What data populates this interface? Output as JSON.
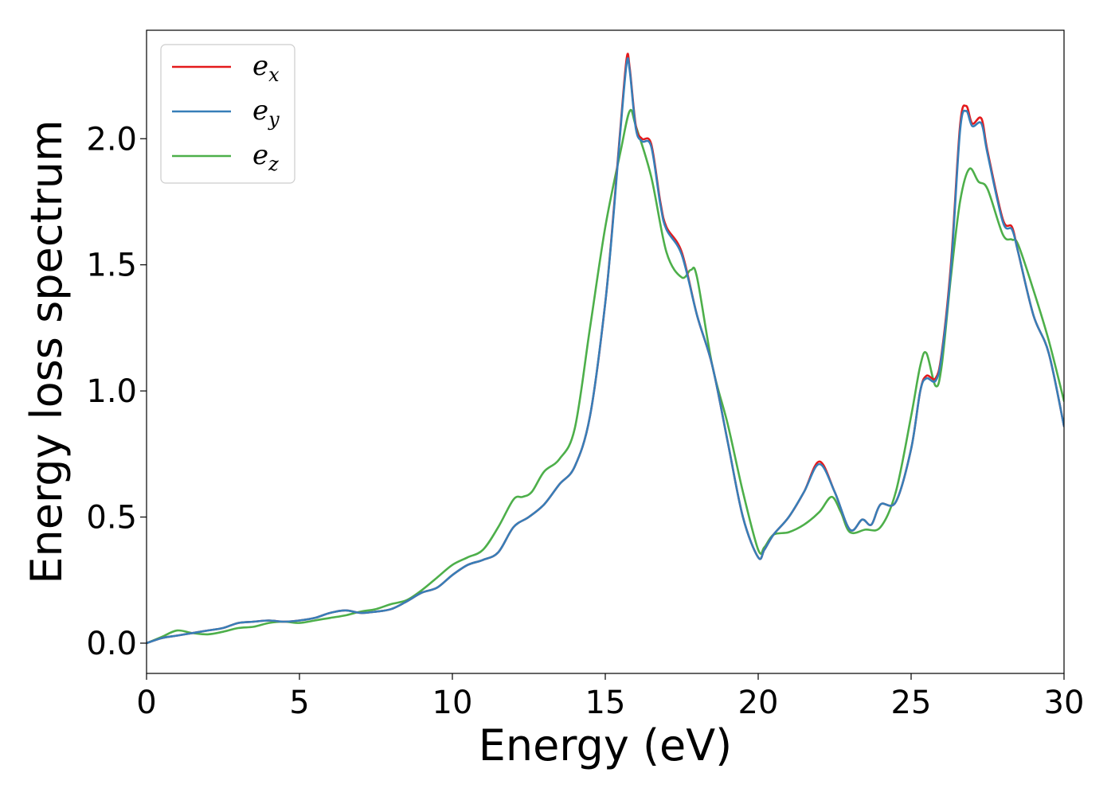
{
  "chart_data": {
    "type": "line",
    "title": "",
    "xlabel": "Energy (eV)",
    "ylabel": "Energy loss spectrum",
    "xlim": [
      0,
      30
    ],
    "ylim": [
      -0.12,
      2.43
    ],
    "xticks": [
      0,
      5,
      10,
      15,
      20,
      25,
      30
    ],
    "xtick_labels": [
      "0",
      "5",
      "10",
      "15",
      "20",
      "25",
      "30"
    ],
    "yticks": [
      0.0,
      0.5,
      1.0,
      1.5,
      2.0
    ],
    "ytick_labels": [
      "0.0",
      "0.5",
      "1.0",
      "1.5",
      "2.0"
    ],
    "grid": false,
    "legend_position": "top-left",
    "series": [
      {
        "name": "e_x",
        "legend_base": "e",
        "legend_sub": "x",
        "color": "#e41a1c",
        "x": [
          0,
          0.5,
          1,
          1.5,
          2,
          2.5,
          3,
          3.5,
          4,
          4.5,
          5,
          5.5,
          6,
          6.5,
          7,
          7.5,
          8,
          8.5,
          9,
          9.5,
          10,
          10.5,
          11,
          11.5,
          12,
          12.5,
          13,
          13.5,
          14,
          14.5,
          15,
          15.3,
          15.5,
          15.7,
          15.8,
          16,
          16.2,
          16.5,
          16.8,
          17,
          17.5,
          18,
          18.5,
          19,
          19.5,
          20,
          20.2,
          20.5,
          21,
          21.5,
          22,
          22.5,
          23,
          23.4,
          23.7,
          24,
          24.5,
          25,
          25.3,
          25.5,
          25.8,
          26,
          26.3,
          26.6,
          26.8,
          27,
          27.3,
          27.5,
          28,
          28.3,
          28.5,
          29,
          29.5,
          30
        ],
        "y": [
          0.0,
          0.02,
          0.03,
          0.04,
          0.05,
          0.06,
          0.08,
          0.085,
          0.09,
          0.085,
          0.09,
          0.1,
          0.12,
          0.13,
          0.12,
          0.125,
          0.135,
          0.165,
          0.2,
          0.22,
          0.27,
          0.31,
          0.33,
          0.36,
          0.46,
          0.5,
          0.55,
          0.63,
          0.7,
          0.9,
          1.35,
          1.75,
          2.05,
          2.32,
          2.28,
          2.05,
          2.0,
          1.98,
          1.75,
          1.65,
          1.55,
          1.3,
          1.1,
          0.8,
          0.5,
          0.34,
          0.37,
          0.43,
          0.5,
          0.6,
          0.72,
          0.6,
          0.45,
          0.49,
          0.47,
          0.55,
          0.56,
          0.77,
          1.0,
          1.06,
          1.05,
          1.15,
          1.5,
          2.05,
          2.13,
          2.06,
          2.08,
          1.95,
          1.68,
          1.65,
          1.55,
          1.3,
          1.15,
          0.86
        ]
      },
      {
        "name": "e_y",
        "legend_base": "e",
        "legend_sub": "y",
        "color": "#377eb8",
        "x": [
          0,
          0.5,
          1,
          1.5,
          2,
          2.5,
          3,
          3.5,
          4,
          4.5,
          5,
          5.5,
          6,
          6.5,
          7,
          7.5,
          8,
          8.5,
          9,
          9.5,
          10,
          10.5,
          11,
          11.5,
          12,
          12.5,
          13,
          13.5,
          14,
          14.5,
          15,
          15.3,
          15.5,
          15.7,
          15.8,
          16,
          16.2,
          16.5,
          16.8,
          17,
          17.5,
          18,
          18.5,
          19,
          19.5,
          20,
          20.2,
          20.5,
          21,
          21.5,
          22,
          22.5,
          23,
          23.4,
          23.7,
          24,
          24.5,
          25,
          25.3,
          25.5,
          25.8,
          26,
          26.3,
          26.6,
          26.8,
          27,
          27.3,
          27.5,
          28,
          28.3,
          28.5,
          29,
          29.5,
          30
        ],
        "y": [
          0.0,
          0.02,
          0.03,
          0.04,
          0.05,
          0.06,
          0.08,
          0.085,
          0.09,
          0.085,
          0.09,
          0.1,
          0.12,
          0.13,
          0.12,
          0.125,
          0.135,
          0.165,
          0.2,
          0.22,
          0.27,
          0.31,
          0.33,
          0.36,
          0.46,
          0.5,
          0.55,
          0.63,
          0.7,
          0.9,
          1.35,
          1.74,
          2.04,
          2.3,
          2.27,
          2.04,
          1.99,
          1.97,
          1.74,
          1.64,
          1.54,
          1.3,
          1.1,
          0.8,
          0.5,
          0.34,
          0.37,
          0.43,
          0.5,
          0.6,
          0.71,
          0.6,
          0.45,
          0.49,
          0.47,
          0.55,
          0.56,
          0.77,
          1.0,
          1.05,
          1.04,
          1.14,
          1.48,
          2.03,
          2.11,
          2.05,
          2.06,
          1.94,
          1.67,
          1.64,
          1.55,
          1.3,
          1.15,
          0.86
        ]
      },
      {
        "name": "e_z",
        "legend_base": "e",
        "legend_sub": "z",
        "color": "#4daf4a",
        "x": [
          0,
          0.5,
          1,
          1.5,
          2,
          2.5,
          3,
          3.5,
          4,
          4.5,
          5,
          5.5,
          6,
          6.5,
          7,
          7.5,
          8,
          8.5,
          9,
          9.5,
          10,
          10.5,
          11,
          11.5,
          12,
          12.3,
          12.6,
          13,
          13.5,
          14,
          14.5,
          15,
          15.5,
          15.8,
          16,
          16.5,
          17,
          17.5,
          17.8,
          18,
          18.5,
          19,
          19.5,
          20,
          20.2,
          20.5,
          21,
          21.5,
          22,
          22.4,
          22.7,
          23,
          23.5,
          24,
          24.5,
          25,
          25.3,
          25.5,
          25.8,
          26,
          26.3,
          26.6,
          26.9,
          27.2,
          27.5,
          28,
          28.3,
          28.5,
          29,
          29.5,
          30
        ],
        "y": [
          0.0,
          0.025,
          0.05,
          0.04,
          0.035,
          0.045,
          0.06,
          0.065,
          0.08,
          0.085,
          0.08,
          0.09,
          0.1,
          0.11,
          0.125,
          0.135,
          0.155,
          0.17,
          0.21,
          0.26,
          0.31,
          0.34,
          0.37,
          0.46,
          0.57,
          0.58,
          0.6,
          0.68,
          0.73,
          0.85,
          1.25,
          1.65,
          1.95,
          2.11,
          2.05,
          1.85,
          1.55,
          1.45,
          1.48,
          1.45,
          1.1,
          0.87,
          0.6,
          0.37,
          0.38,
          0.43,
          0.44,
          0.47,
          0.52,
          0.58,
          0.52,
          0.44,
          0.45,
          0.46,
          0.6,
          0.9,
          1.1,
          1.15,
          1.02,
          1.1,
          1.45,
          1.75,
          1.88,
          1.83,
          1.8,
          1.62,
          1.6,
          1.58,
          1.4,
          1.2,
          0.96
        ]
      }
    ]
  }
}
